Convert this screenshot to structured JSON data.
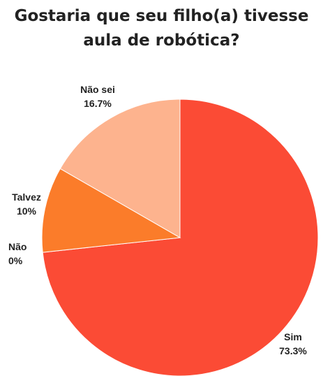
{
  "chart_data": {
    "type": "pie",
    "title": "Gostaria que seu filho(a) tivesse aula de robótica?",
    "slices": [
      {
        "label": "Sim",
        "value": 73.3,
        "value_label": "73.3%",
        "color": "#fb4b35"
      },
      {
        "label": "Não",
        "value": 0,
        "value_label": "0%",
        "color": "#fb4b35"
      },
      {
        "label": "Talvez",
        "value": 10,
        "value_label": "10%",
        "color": "#fb7c2a"
      },
      {
        "label": "Não sei",
        "value": 16.7,
        "value_label": "16.7%",
        "color": "#fdb38e"
      }
    ]
  }
}
